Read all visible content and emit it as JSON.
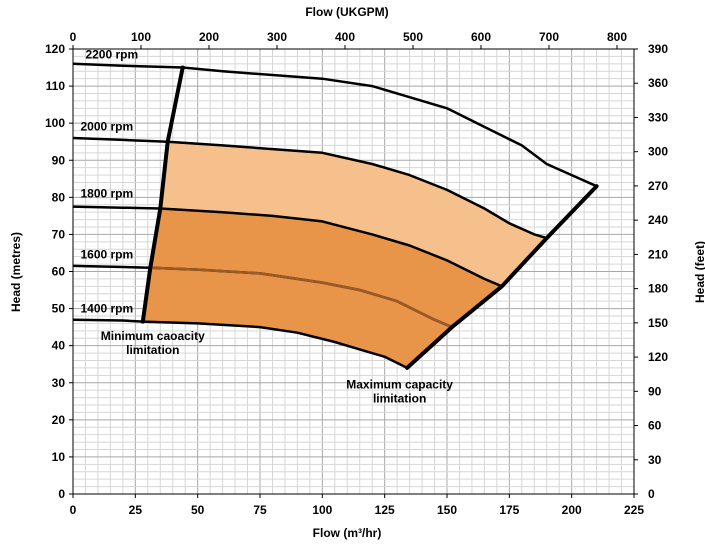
{
  "chart_data": {
    "type": "line",
    "title": "",
    "xlabel": "Flow (m³/hr)",
    "ylabel": "Head (metres)",
    "x2label": "Flow (UKGPM)",
    "y2label": "Head (feet)",
    "xlim": [
      0,
      225
    ],
    "ylim": [
      0,
      120
    ],
    "x2lim": [
      0,
      825
    ],
    "y2lim": [
      0,
      390
    ],
    "x_ticks": [
      "0",
      "25",
      "50",
      "75",
      "100",
      "125",
      "150",
      "175",
      "200",
      "225"
    ],
    "y_ticks": [
      "0",
      "10",
      "20",
      "30",
      "40",
      "50",
      "60",
      "70",
      "80",
      "90",
      "100",
      "110",
      "120"
    ],
    "x2_ticks": [
      "0",
      "100",
      "200",
      "300",
      "400",
      "500",
      "600",
      "700",
      "800"
    ],
    "y2_ticks": [
      "0",
      "30",
      "60",
      "90",
      "120",
      "150",
      "180",
      "210",
      "240",
      "270",
      "300",
      "330",
      "360",
      "390"
    ],
    "grid": true,
    "shaded_region_colors": {
      "upper": "#f6c08c",
      "lower": "#e8954a",
      "curve_in_lower": "#9b5a26"
    },
    "series": [
      {
        "name": "2200 rpm",
        "x": [
          0,
          20,
          44,
          60,
          80,
          100,
          120,
          135,
          150,
          165,
          180,
          190,
          200,
          210
        ],
        "y": [
          116,
          115.5,
          115,
          114,
          113,
          112,
          110,
          107,
          104,
          99,
          94,
          89,
          86,
          83
        ]
      },
      {
        "name": "2000 rpm",
        "x": [
          0,
          20,
          38,
          60,
          80,
          100,
          120,
          135,
          150,
          165,
          175,
          185,
          190
        ],
        "y": [
          96,
          95.5,
          95,
          94,
          93,
          92,
          89,
          86,
          82,
          77,
          73,
          70,
          69
        ]
      },
      {
        "name": "1800 rpm",
        "x": [
          0,
          20,
          35,
          60,
          80,
          100,
          120,
          135,
          150,
          165,
          172
        ],
        "y": [
          77.5,
          77.2,
          77,
          76,
          75,
          73.5,
          70,
          67,
          63,
          58,
          56
        ]
      },
      {
        "name": "1600 rpm",
        "x": [
          0,
          20,
          31,
          50,
          75,
          100,
          115,
          130,
          145,
          152
        ],
        "y": [
          61.5,
          61.2,
          61,
          60.5,
          59.5,
          57,
          55,
          52,
          47,
          45
        ]
      },
      {
        "name": "1400 rpm",
        "x": [
          0,
          20,
          28,
          50,
          75,
          90,
          105,
          115,
          125,
          134
        ],
        "y": [
          47,
          46.8,
          46.5,
          46,
          45,
          43.5,
          41,
          39,
          37,
          34
        ]
      }
    ],
    "limits": [
      {
        "name": "Minimum caoacity limitation",
        "x": [
          44,
          38,
          35,
          31,
          28
        ],
        "y": [
          115,
          95,
          77,
          61,
          46.5
        ]
      },
      {
        "name": "Maximum capacity limitation",
        "x": [
          134,
          152,
          172,
          190,
          210
        ],
        "y": [
          34,
          45,
          56,
          69,
          83
        ]
      }
    ],
    "annotations": [
      {
        "id": "rpm-2200",
        "lines": [
          "2200 rpm"
        ],
        "x": 5,
        "y": 117.5,
        "anchor": "start"
      },
      {
        "id": "rpm-2000",
        "lines": [
          "2000 rpm"
        ],
        "x": 3,
        "y": 98.0,
        "anchor": "start"
      },
      {
        "id": "rpm-1800",
        "lines": [
          "1800 rpm"
        ],
        "x": 3,
        "y": 80.0,
        "anchor": "start"
      },
      {
        "id": "rpm-1600",
        "lines": [
          "1600 rpm"
        ],
        "x": 3,
        "y": 63.5,
        "anchor": "start"
      },
      {
        "id": "rpm-1400",
        "lines": [
          "1400 rpm"
        ],
        "x": 3,
        "y": 49.0,
        "anchor": "start"
      },
      {
        "id": "min-capacity",
        "lines": [
          "Minimum caoacity",
          "limitation"
        ],
        "x": 32,
        "y": 41.5,
        "anchor": "middle"
      },
      {
        "id": "max-capacity",
        "lines": [
          "Maximum capacity",
          "limitation"
        ],
        "x": 131,
        "y": 28.5,
        "anchor": "middle"
      }
    ]
  }
}
